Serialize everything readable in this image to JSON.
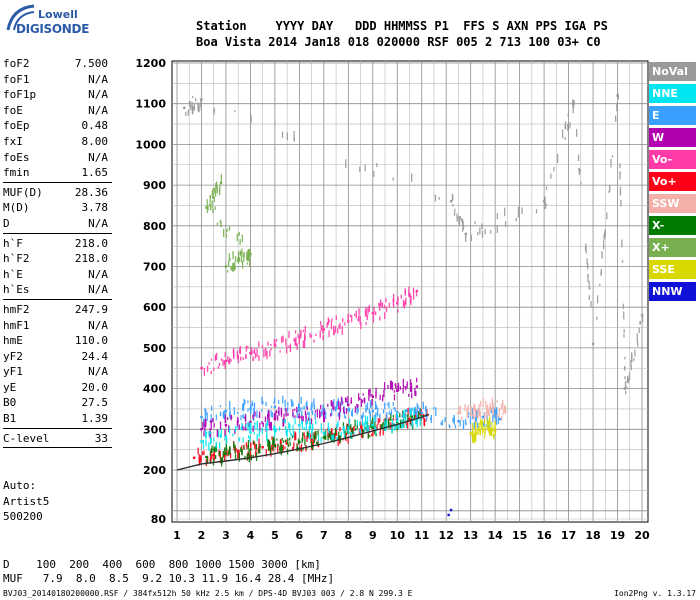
{
  "logo": {
    "line1": "Lowell",
    "line2": "DIGISONDE"
  },
  "header": {
    "row1": "Station    YYYY DAY   DDD HHMMSS P1  FFS S AXN PPS IGA PS",
    "row2": "Boa Vista 2014 Jan18 018 020000 RSF 005 2 713 100 03+ C0"
  },
  "params": [
    {
      "k": "foF2",
      "v": "7.500"
    },
    {
      "k": "foF1",
      "v": "N/A"
    },
    {
      "k": "foF1p",
      "v": "N/A"
    },
    {
      "k": "foE",
      "v": "N/A"
    },
    {
      "k": "foEp",
      "v": "0.48"
    },
    {
      "k": "fxI",
      "v": "8.00"
    },
    {
      "k": "foEs",
      "v": "N/A"
    },
    {
      "k": "fmin",
      "v": "1.65"
    },
    {
      "k": "MUF(D)",
      "v": "28.36"
    },
    {
      "k": "M(D)",
      "v": "3.78"
    },
    {
      "k": "D",
      "v": "N/A"
    },
    {
      "k": "h`F",
      "v": "218.0"
    },
    {
      "k": "h`F2",
      "v": "218.0"
    },
    {
      "k": "h`E",
      "v": "N/A"
    },
    {
      "k": "h`Es",
      "v": "N/A"
    },
    {
      "k": "hmF2",
      "v": "247.9"
    },
    {
      "k": "hmF1",
      "v": "N/A"
    },
    {
      "k": "hmE",
      "v": "110.0"
    },
    {
      "k": "yF2",
      "v": "24.4"
    },
    {
      "k": "yF1",
      "v": "N/A"
    },
    {
      "k": "yE",
      "v": "20.0"
    },
    {
      "k": "B0",
      "v": "27.5"
    },
    {
      "k": "B1",
      "v": "1.39"
    },
    {
      "k": "C-level",
      "v": "33"
    }
  ],
  "auto": {
    "line1": "Auto:",
    "line2": "Artist5",
    "line3": "500200"
  },
  "legend": [
    {
      "label": "NoVal",
      "color": "#9a9a9a"
    },
    {
      "label": "NNE",
      "color": "#00e6f0"
    },
    {
      "label": "E",
      "color": "#3aa0ff"
    },
    {
      "label": "W",
      "color": "#b000b0"
    },
    {
      "label": "Vo-",
      "color": "#ff3aa8"
    },
    {
      "label": "Vo+",
      "color": "#ff0018"
    },
    {
      "label": "SSW",
      "color": "#f4b0a8"
    },
    {
      "label": "X-",
      "color": "#007a00"
    },
    {
      "label": "X+",
      "color": "#78b050"
    },
    {
      "label": "SSE",
      "color": "#d8d800"
    },
    {
      "label": "NNW",
      "color": "#1010d8"
    }
  ],
  "bottom": {
    "row1": "D    100  200  400  600  800 1000 1500 3000 [km]",
    "row2": "MUF   7.9  8.0  8.5  9.2 10.3 11.9 16.4 28.4 [MHz]"
  },
  "footer": {
    "left": "BVJ03_20140180200000.RSF / 384fx512h 50 kHz 2.5 km / DPS-4D BVJ03 003 / 2.8 N 299.3 E",
    "right": "Ion2Png v. 1.3.17"
  },
  "chart_data": {
    "type": "scatter",
    "x_ticks": [
      1,
      2,
      3,
      4,
      5,
      6,
      7,
      8,
      9,
      10,
      11,
      12,
      13,
      14,
      15,
      16,
      17,
      18,
      19,
      20
    ],
    "y_ticks": [
      80,
      200,
      300,
      400,
      500,
      600,
      700,
      800,
      900,
      1000,
      1100,
      1200
    ],
    "xlim": [
      1,
      20
    ],
    "ylim": [
      80,
      1200
    ],
    "grid": true,
    "series": [
      {
        "name": "Vo+",
        "color": "#ff0018",
        "points": [
          [
            1.7,
            230
          ],
          [
            2.5,
            237
          ],
          [
            3.5,
            247
          ],
          [
            4.5,
            256
          ],
          [
            5.5,
            265
          ],
          [
            6.5,
            275
          ],
          [
            7.5,
            287
          ],
          [
            8.5,
            298
          ],
          [
            9.5,
            310
          ],
          [
            10.5,
            325
          ],
          [
            11.2,
            336
          ]
        ]
      },
      {
        "name": "X-",
        "color": "#007a00",
        "points": [
          [
            2.2,
            232
          ],
          [
            3.0,
            240
          ],
          [
            4.0,
            250
          ],
          [
            5.0,
            259
          ],
          [
            6.0,
            269
          ],
          [
            7.0,
            280
          ],
          [
            8.0,
            292
          ],
          [
            9.0,
            304
          ],
          [
            10.0,
            317
          ],
          [
            11.0,
            332
          ]
        ]
      },
      {
        "name": "Vo-",
        "color": "#ff3aa8",
        "points": [
          [
            2.0,
            450
          ],
          [
            3.0,
            468
          ],
          [
            4.0,
            487
          ],
          [
            5.0,
            506
          ],
          [
            6.0,
            525
          ],
          [
            7.0,
            545
          ],
          [
            8.0,
            565
          ],
          [
            9.0,
            585
          ],
          [
            10.0,
            610
          ],
          [
            10.8,
            640
          ]
        ]
      },
      {
        "name": "E",
        "color": "#3aa0ff",
        "points": [
          [
            2.0,
            330
          ],
          [
            3.0,
            345
          ],
          [
            4.0,
            350
          ],
          [
            5.0,
            355
          ],
          [
            6.0,
            352
          ],
          [
            7.0,
            350
          ],
          [
            8.0,
            348
          ],
          [
            9.0,
            345
          ],
          [
            10.0,
            342
          ],
          [
            11.0,
            340
          ],
          [
            12.5,
            320
          ],
          [
            13.5,
            330
          ],
          [
            14.2,
            325
          ]
        ]
      },
      {
        "name": "W",
        "color": "#b000b0",
        "points": [
          [
            2.0,
            300
          ],
          [
            3.0,
            310
          ],
          [
            4.0,
            318
          ],
          [
            5.0,
            325
          ],
          [
            6.0,
            330
          ],
          [
            7.0,
            340
          ],
          [
            8.0,
            360
          ],
          [
            9.0,
            380
          ],
          [
            10.0,
            395
          ],
          [
            10.8,
            405
          ]
        ]
      },
      {
        "name": "NNE",
        "color": "#00e6f0",
        "points": [
          [
            2.0,
            270
          ],
          [
            3.0,
            282
          ],
          [
            4.0,
            292
          ],
          [
            5.0,
            300
          ],
          [
            6.0,
            310
          ],
          [
            7.0,
            290
          ],
          [
            8.0,
            300
          ],
          [
            9.0,
            310
          ],
          [
            10.0,
            320
          ],
          [
            11.0,
            330
          ]
        ]
      },
      {
        "name": "SSE",
        "color": "#d8d800",
        "points": [
          [
            13.0,
            290
          ],
          [
            13.3,
            298
          ],
          [
            13.7,
            305
          ],
          [
            14.0,
            295
          ]
        ]
      },
      {
        "name": "SSW",
        "color": "#f4b0a8",
        "points": [
          [
            12.5,
            340
          ],
          [
            13.2,
            348
          ],
          [
            13.8,
            352
          ],
          [
            14.4,
            344
          ]
        ]
      },
      {
        "name": "X+",
        "color": "#78b050",
        "points": [
          [
            3.0,
            700
          ],
          [
            3.5,
            715
          ],
          [
            4.0,
            730
          ],
          [
            2.2,
            845
          ],
          [
            2.8,
            905
          ]
        ]
      },
      {
        "name": "NNW",
        "color": "#1010d8",
        "points": [
          [
            12.2,
            102
          ],
          [
            12.1,
            90
          ]
        ]
      },
      {
        "name": "NoVal",
        "color": "#9a9a9a",
        "points": [
          [
            1.3,
            1090
          ],
          [
            2.0,
            1110
          ],
          [
            12.2,
            860
          ],
          [
            12.8,
            780
          ],
          [
            16.0,
            860
          ],
          [
            17.2,
            1100
          ],
          [
            18.0,
            510
          ],
          [
            19.0,
            1120
          ],
          [
            19.3,
            400
          ],
          [
            20.0,
            580
          ]
        ]
      }
    ],
    "trace_curve": {
      "color": "#303030",
      "points": [
        [
          1.0,
          200
        ],
        [
          2.0,
          215
        ],
        [
          3.0,
          222
        ],
        [
          4.0,
          230
        ],
        [
          5.0,
          240
        ],
        [
          6.0,
          252
        ],
        [
          7.0,
          265
        ],
        [
          8.0,
          280
        ],
        [
          9.0,
          296
        ],
        [
          10.0,
          312
        ],
        [
          11.0,
          330
        ],
        [
          11.3,
          336
        ]
      ]
    }
  }
}
